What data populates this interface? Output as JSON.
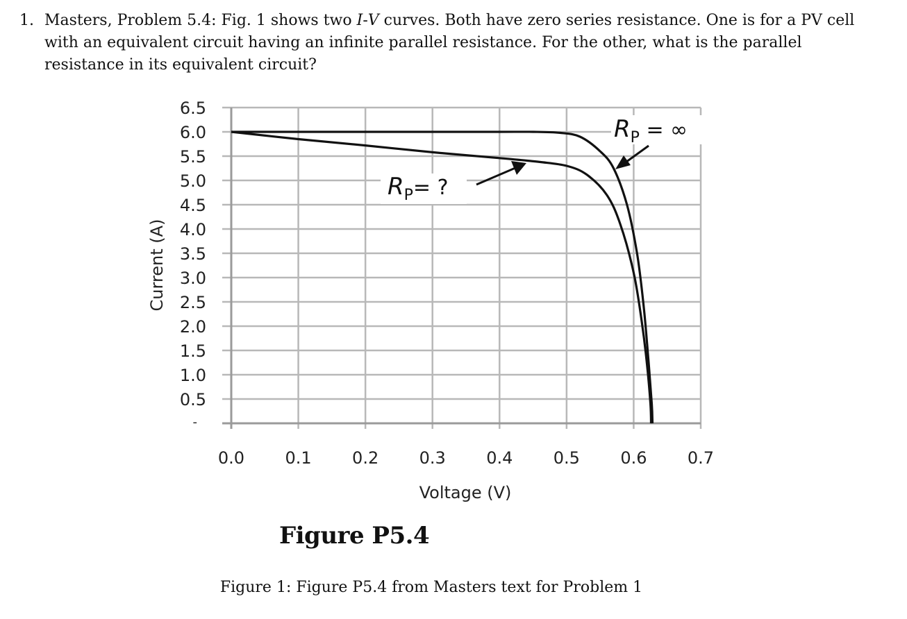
{
  "problem": {
    "number": "1.",
    "text_before": "Masters, Problem 5.4: Fig. 1 shows two ",
    "var_i": "I",
    "dash": "-",
    "var_v": "V",
    "text_after": " curves. Both have zero series resistance. One is for a PV cell with an equivalent circuit having an infinite parallel resistance. For the other, what is the parallel resistance in its equivalent circuit?"
  },
  "chart_data": {
    "type": "line",
    "xlabel": "Voltage (V)",
    "ylabel": "Current (A)",
    "xlim": [
      0,
      0.7
    ],
    "ylim": [
      0,
      6.5
    ],
    "x_ticks": [
      "0.0",
      "0.1",
      "0.2",
      "0.3",
      "0.4",
      "0.5",
      "0.6",
      "0.7"
    ],
    "y_ticks": [
      "6.5",
      "6.0",
      "5.5",
      "5.0",
      "4.5",
      "4.0",
      "3.5",
      "3.0",
      "2.5",
      "2.0",
      "1.5",
      "1.0",
      "0.5",
      "-"
    ],
    "grid": true,
    "series": [
      {
        "points": [
          [
            0.0,
            6.0
          ],
          [
            0.1,
            6.0
          ],
          [
            0.2,
            6.0
          ],
          [
            0.3,
            6.0
          ],
          [
            0.4,
            6.0
          ],
          [
            0.45,
            6.0
          ],
          [
            0.49,
            5.98
          ],
          [
            0.52,
            5.9
          ],
          [
            0.55,
            5.6
          ],
          [
            0.57,
            5.25
          ],
          [
            0.59,
            4.5
          ],
          [
            0.605,
            3.5
          ],
          [
            0.615,
            2.4
          ],
          [
            0.622,
            1.3
          ],
          [
            0.627,
            0.4
          ],
          [
            0.628,
            0.0
          ]
        ]
      },
      {
        "points": [
          [
            0.0,
            6.0
          ],
          [
            0.1,
            5.85
          ],
          [
            0.2,
            5.72
          ],
          [
            0.3,
            5.58
          ],
          [
            0.4,
            5.46
          ],
          [
            0.46,
            5.38
          ],
          [
            0.5,
            5.3
          ],
          [
            0.53,
            5.12
          ],
          [
            0.56,
            4.7
          ],
          [
            0.58,
            4.1
          ],
          [
            0.6,
            3.1
          ],
          [
            0.612,
            2.1
          ],
          [
            0.62,
            1.2
          ],
          [
            0.625,
            0.4
          ],
          [
            0.626,
            0.0
          ]
        ]
      }
    ],
    "annotations": [
      {
        "label_main": "R",
        "label_sub": "P",
        "label_rest": " = ∞"
      },
      {
        "label_main": "R",
        "label_sub": "P",
        "label_rest": "= ?"
      }
    ]
  },
  "figure_label": "Figure P5.4",
  "caption": "Figure 1: Figure P5.4 from Masters text for Problem 1"
}
